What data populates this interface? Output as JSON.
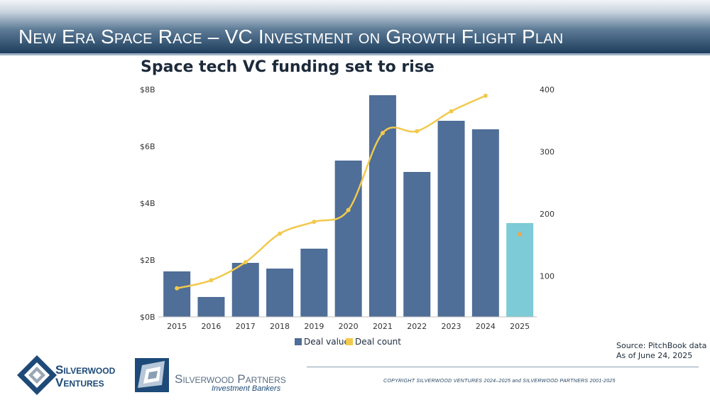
{
  "slide": {
    "title": "New Era Space Race – VC Investment on Growth Flight Plan"
  },
  "chart_data": {
    "type": "bar",
    "title": "Space tech VC funding set to rise",
    "categories": [
      "2015",
      "2016",
      "2017",
      "2018",
      "2019",
      "2020",
      "2021",
      "2022",
      "2023",
      "2024",
      "2025"
    ],
    "series": [
      {
        "name": "Deal value",
        "type": "bar",
        "axis": "left",
        "unit": "billion USD",
        "values": [
          1.6,
          0.7,
          1.9,
          1.7,
          2.4,
          5.5,
          7.8,
          5.1,
          6.9,
          6.6,
          3.3
        ],
        "color": "#4f6e98",
        "highlight": {
          "2025": "#7ccbd6"
        }
      },
      {
        "name": "Deal count",
        "type": "line",
        "axis": "right",
        "values": [
          80,
          93,
          122,
          168,
          187,
          206,
          330,
          333,
          365,
          390,
          null
        ],
        "color": "#f2c94c"
      }
    ],
    "extra_points": [
      {
        "category": "2025",
        "axis": "right",
        "value": 167,
        "color": "#f0a64a"
      }
    ],
    "y_left": {
      "ylim": [
        0,
        8
      ],
      "ticks": [
        0,
        2,
        4,
        6,
        8
      ],
      "tick_labels": [
        "$0B",
        "$2B",
        "$4B",
        "$6B",
        "$8B"
      ]
    },
    "y_right": {
      "ylim": [
        34,
        400
      ],
      "ticks": [
        100,
        200,
        300,
        400
      ],
      "tick_labels": [
        "100",
        "200",
        "300",
        "400"
      ]
    },
    "legend": {
      "placement": "bottom",
      "items": [
        "Deal value",
        "Deal count"
      ]
    },
    "grid": false
  },
  "source": {
    "line1": "Source: PitchBook data",
    "line2": "As of June 24, 2025"
  },
  "footer": {
    "copyright": "COPYRIGHT SILVERWOOD VENTURES 2024–2025 and SILVERWOOD PARTNERS 2001-2025"
  },
  "logos": {
    "ventures": {
      "line1": "Silverwood",
      "line2": "Ventures",
      "color": "#1d4a78"
    },
    "partners": {
      "name": "Silverwood Partners",
      "tagline": "Investment Bankers",
      "color": "#1d4a78"
    }
  }
}
